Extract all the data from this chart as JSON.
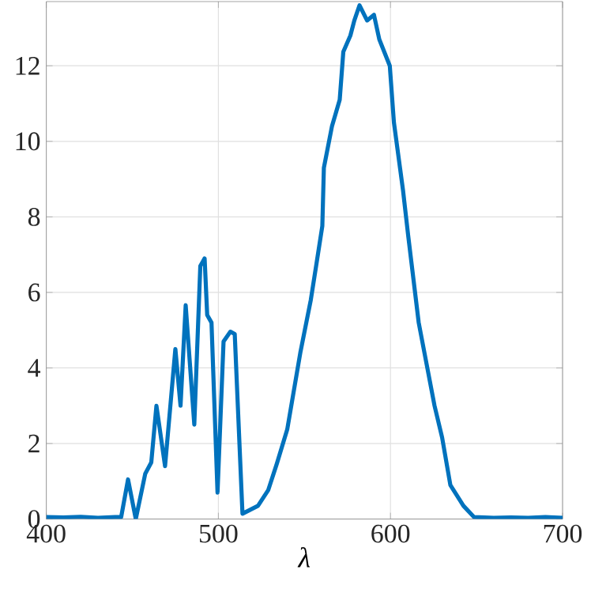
{
  "chart_data": {
    "type": "line",
    "xlabel": "λ",
    "xlim": [
      400,
      700
    ],
    "xticks": [
      400,
      500,
      600,
      700
    ],
    "ylim": [
      0,
      13.7
    ],
    "yticks": [
      0,
      2,
      4,
      6,
      8,
      10,
      12
    ],
    "grid": true,
    "marker": "none",
    "line_style": "solid",
    "series": [
      {
        "color": "#0072bd",
        "x": [
          400,
          410,
          420,
          430,
          440,
          443.5,
          447.5,
          452,
          457.5,
          461,
          464,
          469,
          475,
          478,
          481,
          486,
          489.5,
          492,
          493.5,
          496,
          499.5,
          503,
          507,
          509.5,
          514,
          523,
          529,
          534,
          540,
          547.6,
          553.7,
          556.8,
          560.4,
          561.3,
          566,
          570.5,
          572.6,
          576.7,
          579,
          582,
          586.4,
          590.4,
          593.5,
          599.6,
          602,
          607.3,
          610.3,
          616.4,
          625.6,
          630,
          634.8,
          642.4,
          648.6,
          660,
          670,
          680,
          690,
          700
        ],
        "values": [
          0.05,
          0.04,
          0.06,
          0.03,
          0.05,
          0.05,
          1.05,
          0,
          1.2,
          1.5,
          3.0,
          1.4,
          4.5,
          3.0,
          5.66,
          2.5,
          6.7,
          6.9,
          5.4,
          5.2,
          0.7,
          4.7,
          4.96,
          4.9,
          0.14,
          0.35,
          0.77,
          1.47,
          2.37,
          4.4,
          5.8,
          6.7,
          7.76,
          9.3,
          10.4,
          11.1,
          12.37,
          12.8,
          13.2,
          13.6,
          13.2,
          13.35,
          12.7,
          12.0,
          10.5,
          8.7,
          7.5,
          5.2,
          3.0,
          2.16,
          0.9,
          0.35,
          0.05,
          0.03,
          0.04,
          0.03,
          0.05,
          0.03
        ]
      }
    ]
  }
}
